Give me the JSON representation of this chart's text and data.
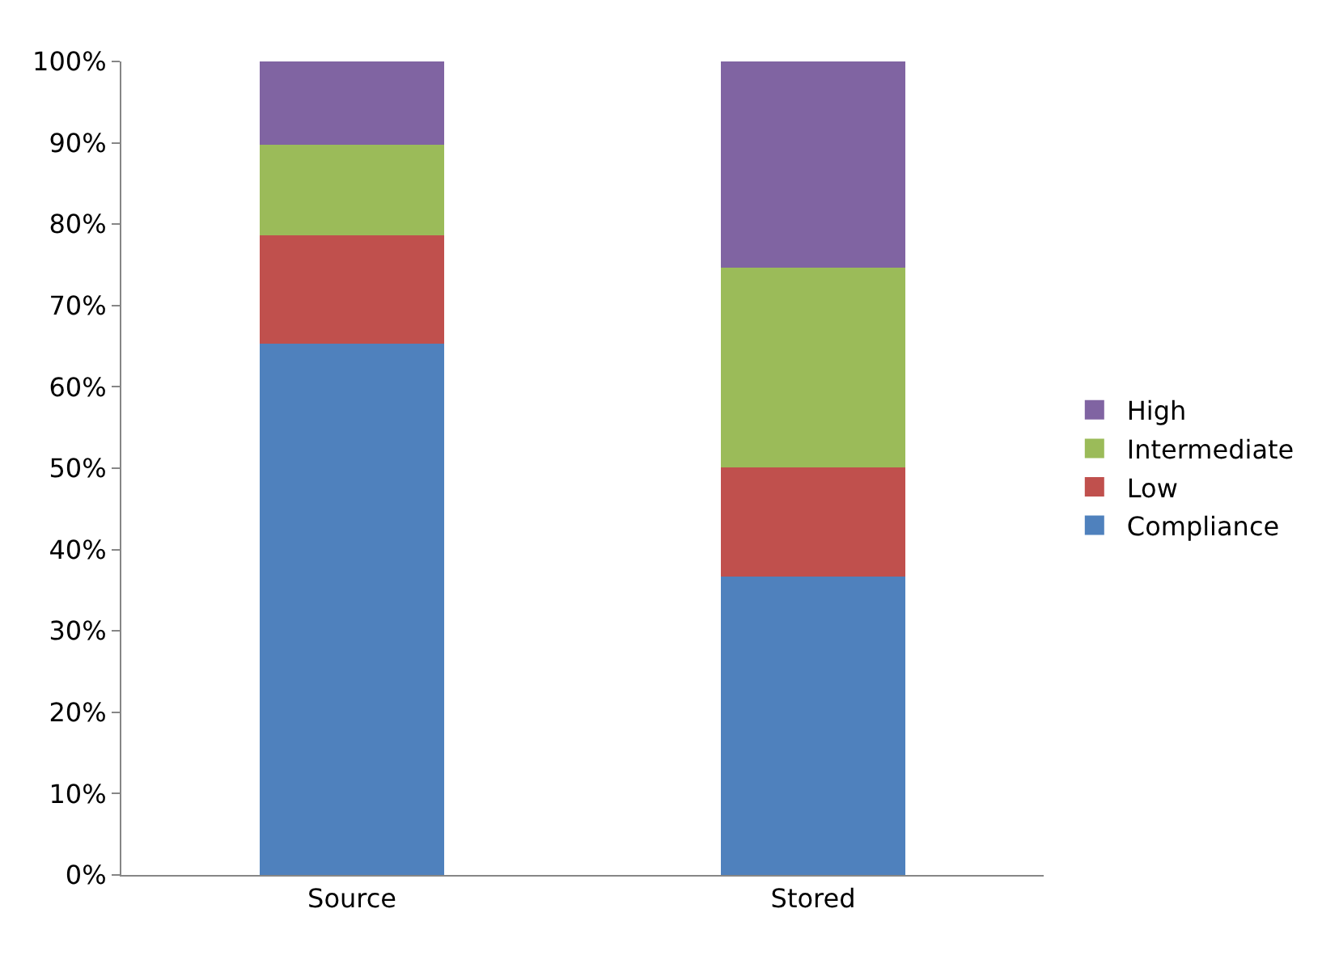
{
  "chart_data": {
    "type": "bar",
    "stacked": true,
    "categories": [
      "Source",
      "Stored"
    ],
    "series": [
      {
        "name": "Compliance",
        "color": "#4f81bd",
        "values": [
          65.3,
          36.7
        ]
      },
      {
        "name": "Low",
        "color": "#c0504d",
        "values": [
          13.3,
          13.4
        ]
      },
      {
        "name": "Intermediate",
        "color": "#9bbb59",
        "values": [
          11.2,
          24.6
        ]
      },
      {
        "name": "High",
        "color": "#8064a2",
        "values": [
          10.2,
          25.3
        ]
      }
    ],
    "ylim": [
      0,
      100
    ],
    "yticks": [
      {
        "value": 0,
        "label": "0%"
      },
      {
        "value": 10,
        "label": "10%"
      },
      {
        "value": 20,
        "label": "20%"
      },
      {
        "value": 30,
        "label": "30%"
      },
      {
        "value": 40,
        "label": "40%"
      },
      {
        "value": 50,
        "label": "50%"
      },
      {
        "value": 60,
        "label": "60%"
      },
      {
        "value": 70,
        "label": "70%"
      },
      {
        "value": 80,
        "label": "80%"
      },
      {
        "value": 90,
        "label": "90%"
      },
      {
        "value": 100,
        "label": "100%"
      }
    ],
    "legend": "right"
  }
}
